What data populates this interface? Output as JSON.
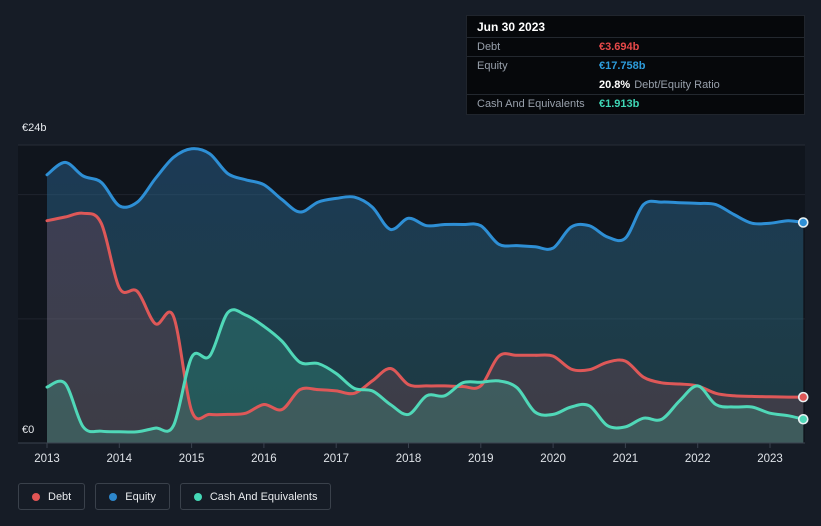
{
  "tooltip": {
    "date": "Jun 30 2023",
    "debt_label": "Debt",
    "debt_value": "€3.694b",
    "equity_label": "Equity",
    "equity_value": "€17.758b",
    "ratio_value": "20.8%",
    "ratio_label": "Debt/Equity Ratio",
    "cash_label": "Cash And Equivalents",
    "cash_value": "€1.913b"
  },
  "legend": {
    "items": [
      {
        "label": "Debt",
        "color": "#e25555"
      },
      {
        "label": "Equity",
        "color": "#2d87cc"
      },
      {
        "label": "Cash And Equivalents",
        "color": "#44d8b6"
      }
    ]
  },
  "axis": {
    "y_top_label": "€24b",
    "y_zero_label": "€0",
    "years": [
      "2013",
      "2014",
      "2015",
      "2016",
      "2017",
      "2018",
      "2019",
      "2020",
      "2021",
      "2022",
      "2023"
    ]
  },
  "colors": {
    "page_background": "#161c26",
    "plot_background": "#10151d",
    "grid_major": "#272d37",
    "grid_minor": "#1f252e",
    "axis_line": "#3a424e",
    "tick_label": "#dfe3e8"
  },
  "chart_data": {
    "type": "area",
    "x_unit": "year",
    "ylim": [
      0,
      24
    ],
    "gridlines": [
      0,
      10,
      20,
      24
    ],
    "legend_position": "bottom-left",
    "x": [
      2013,
      2013.25,
      2013.5,
      2013.75,
      2014,
      2014.25,
      2014.5,
      2014.75,
      2015,
      2015.25,
      2015.5,
      2015.75,
      2016,
      2016.25,
      2016.5,
      2016.75,
      2017,
      2017.25,
      2017.5,
      2017.75,
      2018,
      2018.25,
      2018.5,
      2018.75,
      2019,
      2019.25,
      2019.5,
      2019.75,
      2020,
      2020.25,
      2020.5,
      2020.75,
      2021,
      2021.25,
      2021.5,
      2021.75,
      2022,
      2022.25,
      2022.5,
      2022.75,
      2023,
      2023.25,
      2023.46
    ],
    "series": [
      {
        "name": "Equity",
        "unit": "€b",
        "color": "#2e8fd5",
        "fill": "gradient",
        "fill_top": "rgba(39,94,142,0.50)",
        "fill_bottom": "rgba(58,140,148,0.30)",
        "values": [
          21.6,
          22.6,
          21.5,
          21.0,
          19.1,
          19.4,
          21.3,
          23.0,
          23.7,
          23.3,
          21.7,
          21.2,
          20.8,
          19.6,
          18.6,
          19.4,
          19.7,
          19.8,
          19.0,
          17.2,
          18.1,
          17.5,
          17.6,
          17.6,
          17.5,
          16.0,
          15.9,
          15.8,
          15.7,
          17.4,
          17.5,
          16.6,
          16.5,
          19.2,
          19.4,
          19.35,
          19.3,
          19.2,
          18.4,
          17.7,
          17.7,
          17.9,
          17.758
        ]
      },
      {
        "name": "Debt",
        "unit": "€b",
        "color": "#de5858",
        "fill": "flat",
        "fill_color": "rgba(210,80,95,0.18)",
        "values": [
          17.9,
          18.2,
          18.5,
          17.7,
          12.5,
          12.2,
          9.6,
          10.2,
          2.6,
          2.3,
          2.3,
          2.4,
          3.1,
          2.7,
          4.3,
          4.3,
          4.2,
          4.0,
          5.0,
          6.0,
          4.7,
          4.6,
          4.6,
          4.55,
          4.6,
          7.0,
          7.06,
          7.06,
          7.0,
          5.95,
          5.9,
          6.5,
          6.6,
          5.3,
          4.85,
          4.75,
          4.6,
          4.0,
          3.8,
          3.75,
          3.72,
          3.7,
          3.694
        ]
      },
      {
        "name": "Cash And Equivalents",
        "unit": "€b",
        "color": "#50d8b8",
        "fill": "flat",
        "fill_color": "rgba(72,214,182,0.20)",
        "values": [
          4.5,
          4.8,
          1.3,
          0.95,
          0.9,
          0.9,
          1.2,
          1.4,
          6.9,
          7.0,
          10.5,
          10.3,
          9.4,
          8.2,
          6.5,
          6.4,
          5.6,
          4.4,
          4.2,
          3.1,
          2.3,
          3.8,
          3.8,
          4.85,
          4.9,
          5.0,
          4.45,
          2.5,
          2.3,
          2.9,
          3.0,
          1.4,
          1.3,
          2.0,
          1.9,
          3.4,
          4.6,
          3.1,
          2.9,
          2.9,
          2.4,
          2.2,
          1.913
        ]
      }
    ],
    "last_point": {
      "date": "Jun 30 2023",
      "Debt": 3.694,
      "Equity": 17.758,
      "Cash And Equivalents": 1.913,
      "debt_equity_ratio": "20.8%"
    }
  }
}
